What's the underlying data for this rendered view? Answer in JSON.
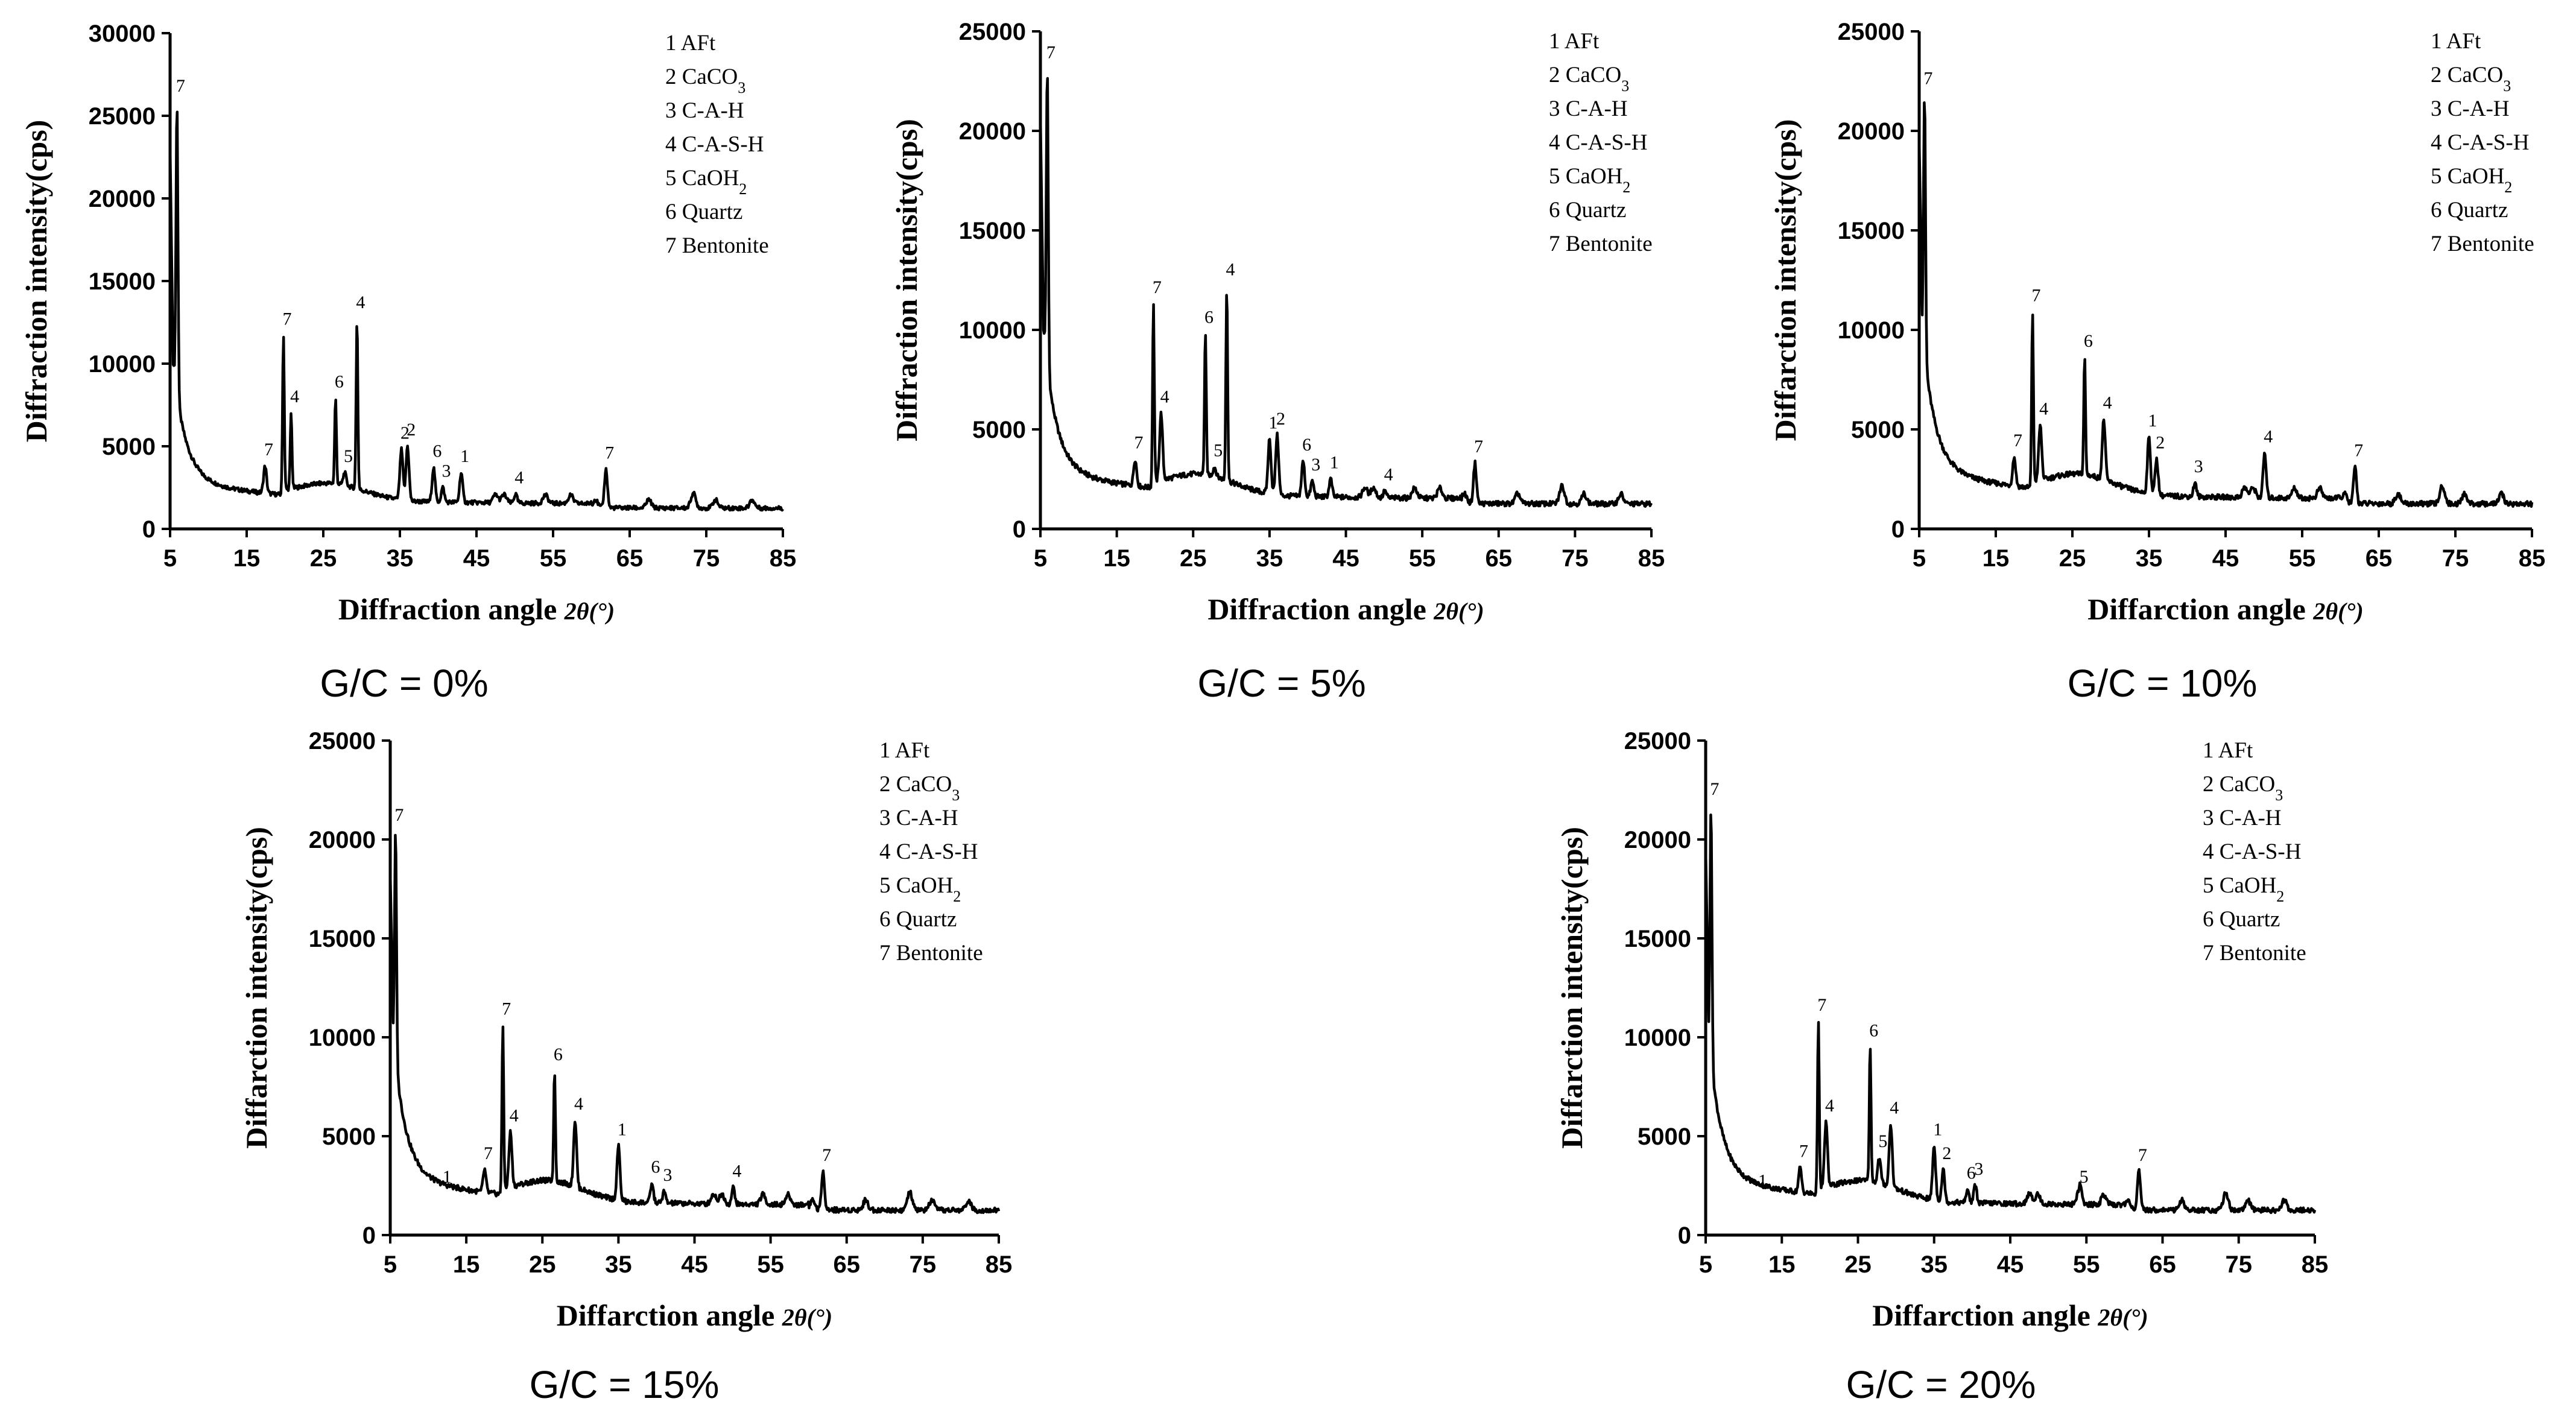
{
  "chart_data": [
    {
      "type": "line",
      "caption": "G/C = 0%",
      "xlabel": "Diffraction angle",
      "xlabel_symbol": "2θ(°)",
      "ylabel": "Diffraction intensity(cps)",
      "xlim": [
        5,
        85
      ],
      "ylim": [
        0,
        30000
      ],
      "xticks": [
        "5",
        "15",
        "25",
        "35",
        "45",
        "55",
        "65",
        "75",
        "85"
      ],
      "yticks": [
        "0",
        "5000",
        "10000",
        "15000",
        "20000",
        "25000",
        "30000"
      ],
      "legend": [
        "1  AFt",
        "2  CaCO3",
        "3  C-A-H",
        "4  C-A-S-H",
        "5  CaOH2",
        "6  Quartz",
        "7  Bentonite"
      ],
      "peaks": [
        {
          "x": 5.9,
          "y": 25800,
          "label": "7"
        },
        {
          "x": 17.4,
          "y": 3800,
          "label": "7"
        },
        {
          "x": 19.8,
          "y": 11700,
          "label": "7"
        },
        {
          "x": 20.8,
          "y": 7000,
          "label": "4"
        },
        {
          "x": 26.6,
          "y": 7900,
          "label": "6"
        },
        {
          "x": 27.8,
          "y": 3400,
          "label": "5"
        },
        {
          "x": 29.4,
          "y": 12700,
          "label": "4"
        },
        {
          "x": 35.2,
          "y": 4800,
          "label": "2"
        },
        {
          "x": 36.0,
          "y": 5000,
          "label": "2"
        },
        {
          "x": 39.4,
          "y": 3700,
          "label": "6"
        },
        {
          "x": 40.6,
          "y": 2500,
          "label": "3"
        },
        {
          "x": 43.0,
          "y": 3400,
          "label": "1"
        },
        {
          "x": 50.1,
          "y": 2100,
          "label": "4"
        },
        {
          "x": 61.9,
          "y": 3600,
          "label": "7"
        }
      ]
    },
    {
      "type": "line",
      "caption": "G/C = 5%",
      "xlabel": "Diffraction angle",
      "xlabel_symbol": "2θ(°)",
      "ylabel": "Diffraction intensity(cps)",
      "xlim": [
        5,
        85
      ],
      "ylim": [
        0,
        25000
      ],
      "xticks": [
        "5",
        "15",
        "25",
        "35",
        "45",
        "55",
        "65",
        "75",
        "85"
      ],
      "yticks": [
        "0",
        "5000",
        "10000",
        "15000",
        "20000",
        "25000"
      ],
      "legend": [
        "1  AFt",
        "2  CaCO3",
        "3  C-A-H",
        "4  C-A-S-H",
        "5  CaOH2",
        "6  Quartz",
        "7  Bentonite"
      ],
      "peaks": [
        {
          "x": 5.9,
          "y": 23100,
          "label": "7"
        },
        {
          "x": 17.4,
          "y": 3500,
          "label": "7"
        },
        {
          "x": 19.8,
          "y": 11300,
          "label": "7"
        },
        {
          "x": 20.8,
          "y": 5800,
          "label": "4"
        },
        {
          "x": 26.6,
          "y": 9800,
          "label": "6"
        },
        {
          "x": 27.8,
          "y": 3100,
          "label": "5"
        },
        {
          "x": 29.4,
          "y": 12200,
          "label": "4"
        },
        {
          "x": 35.0,
          "y": 4500,
          "label": "1"
        },
        {
          "x": 36.0,
          "y": 4700,
          "label": "2"
        },
        {
          "x": 39.4,
          "y": 3400,
          "label": "6"
        },
        {
          "x": 40.6,
          "y": 2400,
          "label": "3"
        },
        {
          "x": 43.0,
          "y": 2500,
          "label": "1"
        },
        {
          "x": 50.1,
          "y": 1900,
          "label": "4"
        },
        {
          "x": 61.9,
          "y": 3300,
          "label": "7"
        }
      ]
    },
    {
      "type": "line",
      "caption": "G/C = 10%",
      "xlabel": "Diffarction angle",
      "xlabel_symbol": "2θ(°)",
      "ylabel": "Diffarction intensity(cps)",
      "xlim": [
        5,
        85
      ],
      "ylim": [
        0,
        25000
      ],
      "xticks": [
        "5",
        "15",
        "25",
        "35",
        "45",
        "55",
        "65",
        "75",
        "85"
      ],
      "yticks": [
        "0",
        "5000",
        "10000",
        "15000",
        "20000",
        "25000"
      ],
      "legend": [
        "1  AFt",
        "2  CaCO3",
        "3  C-A-H",
        "4  C-A-S-H",
        "5  CaOH2",
        "6  Quartz",
        "7  Bentonite"
      ],
      "peaks": [
        {
          "x": 5.7,
          "y": 21800,
          "label": "7"
        },
        {
          "x": 17.4,
          "y": 3600,
          "label": "7"
        },
        {
          "x": 19.8,
          "y": 10900,
          "label": "7"
        },
        {
          "x": 20.8,
          "y": 5200,
          "label": "4"
        },
        {
          "x": 26.6,
          "y": 8600,
          "label": "6"
        },
        {
          "x": 29.1,
          "y": 5500,
          "label": "4"
        },
        {
          "x": 35.0,
          "y": 4600,
          "label": "1"
        },
        {
          "x": 36.0,
          "y": 3500,
          "label": "2"
        },
        {
          "x": 41.0,
          "y": 2300,
          "label": "3"
        },
        {
          "x": 50.1,
          "y": 3800,
          "label": "4"
        },
        {
          "x": 61.9,
          "y": 3100,
          "label": "7"
        }
      ]
    },
    {
      "type": "line",
      "caption": "G/C = 15%",
      "xlabel": "Diffarction angle",
      "xlabel_symbol": "2θ(°)",
      "ylabel": "Diffarction intensity(cps)",
      "xlim": [
        5,
        85
      ],
      "ylim": [
        0,
        25000
      ],
      "xticks": [
        "5",
        "15",
        "25",
        "35",
        "45",
        "55",
        "65",
        "75",
        "85"
      ],
      "yticks": [
        "0",
        "5000",
        "10000",
        "15000",
        "20000",
        "25000"
      ],
      "legend": [
        "1  AFt",
        "2  CaCO3",
        "3  C-A-H",
        "4  C-A-S-H",
        "5  CaOH2",
        "6  Quartz",
        "7  Bentonite"
      ],
      "peaks": [
        {
          "x": 5.7,
          "y": 20400,
          "label": "7"
        },
        {
          "x": 12.0,
          "y": 2100,
          "label": "1"
        },
        {
          "x": 17.4,
          "y": 3300,
          "label": "7"
        },
        {
          "x": 19.8,
          "y": 10600,
          "label": "7"
        },
        {
          "x": 20.8,
          "y": 5200,
          "label": "4"
        },
        {
          "x": 26.6,
          "y": 8300,
          "label": "6"
        },
        {
          "x": 29.3,
          "y": 5800,
          "label": "4"
        },
        {
          "x": 35.0,
          "y": 4500,
          "label": "1"
        },
        {
          "x": 39.4,
          "y": 2600,
          "label": "6"
        },
        {
          "x": 41.0,
          "y": 2200,
          "label": "3"
        },
        {
          "x": 50.1,
          "y": 2400,
          "label": "4"
        },
        {
          "x": 61.9,
          "y": 3200,
          "label": "7"
        }
      ]
    },
    {
      "type": "line",
      "caption": "G/C = 20%",
      "xlabel": "Diffarction angle",
      "xlabel_symbol": "2θ(°)",
      "ylabel": "Diffarction intensity(cps)",
      "xlim": [
        5,
        85
      ],
      "ylim": [
        0,
        25000
      ],
      "xticks": [
        "5",
        "15",
        "25",
        "35",
        "45",
        "55",
        "65",
        "75",
        "85"
      ],
      "yticks": [
        "0",
        "5000",
        "10000",
        "15000",
        "20000",
        "25000"
      ],
      "legend": [
        "1  AFt",
        "2  CaCO3",
        "3  C-A-H",
        "4  C-A-S-H",
        "5  CaOH2",
        "6  Quartz",
        "7  Bentonite"
      ],
      "peaks": [
        {
          "x": 5.7,
          "y": 21700,
          "label": "7"
        },
        {
          "x": 12.0,
          "y": 1900,
          "label": "1"
        },
        {
          "x": 17.4,
          "y": 3400,
          "label": "7"
        },
        {
          "x": 19.8,
          "y": 10800,
          "label": "7"
        },
        {
          "x": 20.8,
          "y": 5700,
          "label": "4"
        },
        {
          "x": 26.6,
          "y": 9500,
          "label": "6"
        },
        {
          "x": 27.8,
          "y": 3900,
          "label": "5"
        },
        {
          "x": 29.3,
          "y": 5600,
          "label": "4"
        },
        {
          "x": 35.0,
          "y": 4500,
          "label": "1"
        },
        {
          "x": 36.2,
          "y": 3300,
          "label": "2"
        },
        {
          "x": 39.4,
          "y": 2300,
          "label": "6"
        },
        {
          "x": 40.4,
          "y": 2500,
          "label": "3"
        },
        {
          "x": 54.2,
          "y": 2100,
          "label": "5"
        },
        {
          "x": 61.9,
          "y": 3200,
          "label": "7"
        }
      ]
    }
  ]
}
